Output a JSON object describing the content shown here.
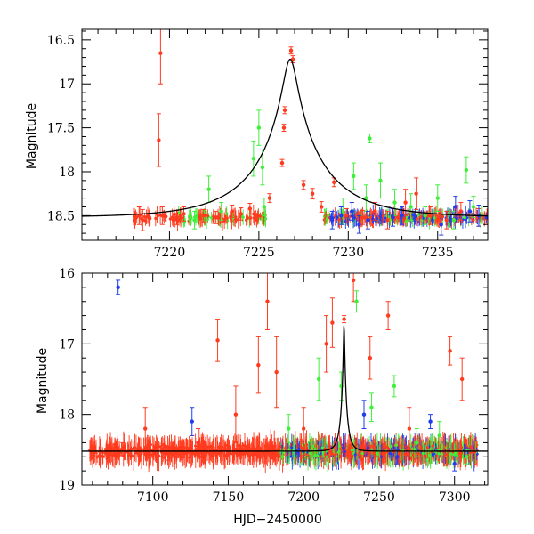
{
  "chart_data": [
    {
      "type": "scatter",
      "panel": "top",
      "title": "",
      "xlabel": "",
      "ylabel": "Magnitude",
      "xlim": [
        7215.1,
        7237.8
      ],
      "ylim": [
        18.78,
        16.38
      ],
      "y_inverted": true,
      "xticks": [
        7220,
        7225,
        7230,
        7235
      ],
      "xtick_labels": [
        "7220",
        "7225",
        "7230",
        "7235"
      ],
      "yticks": [
        16.5,
        17,
        17.5,
        18,
        18.5
      ],
      "ytick_labels": [
        "16.5",
        "17",
        "17.5",
        "18",
        "18.5"
      ],
      "grid": false,
      "series": [
        {
          "name": "red",
          "color": "#ff3a1e",
          "points": [
            {
              "x": 7218.3,
              "y": 18.5,
              "err": 0.1
            },
            {
              "x": 7218.5,
              "y": 18.55,
              "err": 0.12
            },
            {
              "x": 7219.4,
              "y": 17.64,
              "err": 0.3
            },
            {
              "x": 7219.5,
              "y": 16.65,
              "err": 0.35
            },
            {
              "x": 7219.6,
              "y": 18.5,
              "err": 0.1
            },
            {
              "x": 7220.4,
              "y": 18.52,
              "err": 0.08
            },
            {
              "x": 7220.8,
              "y": 18.48,
              "err": 0.08
            },
            {
              "x": 7221.9,
              "y": 18.5,
              "err": 0.07
            },
            {
              "x": 7222.6,
              "y": 18.52,
              "err": 0.07
            },
            {
              "x": 7223.5,
              "y": 18.45,
              "err": 0.07
            },
            {
              "x": 7224.0,
              "y": 18.48,
              "err": 0.07
            },
            {
              "x": 7224.5,
              "y": 18.42,
              "err": 0.06
            },
            {
              "x": 7225.6,
              "y": 18.3,
              "err": 0.05
            },
            {
              "x": 7226.3,
              "y": 17.9,
              "err": 0.04
            },
            {
              "x": 7226.4,
              "y": 17.5,
              "err": 0.04
            },
            {
              "x": 7226.45,
              "y": 17.3,
              "err": 0.04
            },
            {
              "x": 7226.8,
              "y": 16.62,
              "err": 0.04
            },
            {
              "x": 7226.9,
              "y": 16.72,
              "err": 0.04
            },
            {
              "x": 7227.5,
              "y": 18.15,
              "err": 0.05
            },
            {
              "x": 7228.0,
              "y": 18.25,
              "err": 0.06
            },
            {
              "x": 7228.5,
              "y": 18.4,
              "err": 0.06
            },
            {
              "x": 7229.2,
              "y": 18.12,
              "err": 0.05
            },
            {
              "x": 7229.9,
              "y": 18.5,
              "err": 0.08
            },
            {
              "x": 7230.8,
              "y": 18.52,
              "err": 0.08
            },
            {
              "x": 7231.5,
              "y": 18.45,
              "err": 0.1
            },
            {
              "x": 7232.2,
              "y": 18.55,
              "err": 0.1
            },
            {
              "x": 7233.2,
              "y": 18.35,
              "err": 0.15
            },
            {
              "x": 7233.8,
              "y": 18.25,
              "err": 0.18
            },
            {
              "x": 7234.6,
              "y": 18.5,
              "err": 0.1
            },
            {
              "x": 7235.5,
              "y": 18.55,
              "err": 0.1
            },
            {
              "x": 7236.3,
              "y": 18.45,
              "err": 0.1
            },
            {
              "x": 7237.3,
              "y": 18.52,
              "err": 0.1
            }
          ]
        },
        {
          "name": "green",
          "color": "#3ef03a",
          "points": [
            {
              "x": 7221.4,
              "y": 18.55,
              "err": 0.1
            },
            {
              "x": 7222.2,
              "y": 18.2,
              "err": 0.15
            },
            {
              "x": 7222.9,
              "y": 18.45,
              "err": 0.1
            },
            {
              "x": 7224.7,
              "y": 17.85,
              "err": 0.2
            },
            {
              "x": 7225.0,
              "y": 17.5,
              "err": 0.2
            },
            {
              "x": 7225.2,
              "y": 17.95,
              "err": 0.2
            },
            {
              "x": 7225.3,
              "y": 18.4,
              "err": 0.1
            },
            {
              "x": 7229.7,
              "y": 18.45,
              "err": 0.15
            },
            {
              "x": 7230.3,
              "y": 18.05,
              "err": 0.15
            },
            {
              "x": 7231.0,
              "y": 18.3,
              "err": 0.15
            },
            {
              "x": 7231.2,
              "y": 17.62,
              "err": 0.05
            },
            {
              "x": 7231.8,
              "y": 18.1,
              "err": 0.2
            },
            {
              "x": 7232.6,
              "y": 18.35,
              "err": 0.15
            },
            {
              "x": 7233.5,
              "y": 18.4,
              "err": 0.15
            },
            {
              "x": 7234.3,
              "y": 18.5,
              "err": 0.1
            },
            {
              "x": 7235.0,
              "y": 18.3,
              "err": 0.15
            },
            {
              "x": 7235.9,
              "y": 18.55,
              "err": 0.1
            },
            {
              "x": 7236.6,
              "y": 17.98,
              "err": 0.15
            },
            {
              "x": 7237.0,
              "y": 18.4,
              "err": 0.12
            }
          ]
        },
        {
          "name": "blue",
          "color": "#1e3cf0",
          "points": [
            {
              "x": 7229.1,
              "y": 18.55,
              "err": 0.1
            },
            {
              "x": 7229.6,
              "y": 18.5,
              "err": 0.1
            },
            {
              "x": 7230.2,
              "y": 18.45,
              "err": 0.1
            },
            {
              "x": 7230.6,
              "y": 18.6,
              "err": 0.1
            },
            {
              "x": 7231.1,
              "y": 18.55,
              "err": 0.1
            },
            {
              "x": 7232.5,
              "y": 18.52,
              "err": 0.1
            },
            {
              "x": 7233.0,
              "y": 18.5,
              "err": 0.1
            },
            {
              "x": 7235.2,
              "y": 18.6,
              "err": 0.12
            },
            {
              "x": 7236.0,
              "y": 18.4,
              "err": 0.12
            },
            {
              "x": 7236.8,
              "y": 18.45,
              "err": 0.12
            },
            {
              "x": 7237.3,
              "y": 18.5,
              "err": 0.12
            }
          ]
        },
        {
          "name": "model",
          "type": "line",
          "color": "#000000",
          "baseline": 18.52,
          "peak_x": 7226.75,
          "peak_y": 16.72
        }
      ]
    },
    {
      "type": "scatter",
      "panel": "bottom",
      "title": "",
      "xlabel": "HJD−2450000",
      "ylabel": "Magnitude",
      "xlim": [
        7053,
        7322
      ],
      "ylim": [
        19.0,
        16.0
      ],
      "y_inverted": true,
      "xticks": [
        7100,
        7150,
        7200,
        7250,
        7300
      ],
      "xtick_labels": [
        "7100",
        "7150",
        "7200",
        "7250",
        "7300"
      ],
      "yticks": [
        16,
        17,
        18,
        19
      ],
      "ytick_labels": [
        "16",
        "17",
        "18",
        "19"
      ],
      "grid": false,
      "series": [
        {
          "name": "red",
          "color": "#ff3a1e",
          "points": [
            {
              "x": 7060,
              "y": 18.55,
              "err": 0.08
            },
            {
              "x": 7080,
              "y": 18.5,
              "err": 0.1
            },
            {
              "x": 7095,
              "y": 18.2,
              "err": 0.3
            },
            {
              "x": 7110,
              "y": 18.55,
              "err": 0.1
            },
            {
              "x": 7130,
              "y": 18.4,
              "err": 0.2
            },
            {
              "x": 7143,
              "y": 16.95,
              "err": 0.3
            },
            {
              "x": 7155,
              "y": 18.0,
              "err": 0.4
            },
            {
              "x": 7170,
              "y": 17.3,
              "err": 0.4
            },
            {
              "x": 7176,
              "y": 16.4,
              "err": 0.4
            },
            {
              "x": 7182,
              "y": 17.4,
              "err": 0.5
            },
            {
              "x": 7200,
              "y": 18.2,
              "err": 0.3
            },
            {
              "x": 7215,
              "y": 17.0,
              "err": 0.4
            },
            {
              "x": 7219,
              "y": 16.7,
              "err": 0.35
            },
            {
              "x": 7226.8,
              "y": 16.65,
              "err": 0.05
            },
            {
              "x": 7233,
              "y": 16.1,
              "err": 0.3
            },
            {
              "x": 7244,
              "y": 17.2,
              "err": 0.3
            },
            {
              "x": 7256,
              "y": 16.6,
              "err": 0.2
            },
            {
              "x": 7270,
              "y": 18.2,
              "err": 0.3
            },
            {
              "x": 7297,
              "y": 17.1,
              "err": 0.2
            },
            {
              "x": 7305,
              "y": 17.5,
              "err": 0.3
            }
          ]
        },
        {
          "name": "green",
          "color": "#3ef03a",
          "points": [
            {
              "x": 7190,
              "y": 18.2,
              "err": 0.2
            },
            {
              "x": 7210,
              "y": 17.5,
              "err": 0.3
            },
            {
              "x": 7225,
              "y": 17.6,
              "err": 0.2
            },
            {
              "x": 7235,
              "y": 16.4,
              "err": 0.15
            },
            {
              "x": 7245,
              "y": 17.9,
              "err": 0.2
            },
            {
              "x": 7260,
              "y": 17.6,
              "err": 0.15
            },
            {
              "x": 7275,
              "y": 18.4,
              "err": 0.2
            },
            {
              "x": 7290,
              "y": 18.3,
              "err": 0.2
            },
            {
              "x": 7308,
              "y": 18.6,
              "err": 0.1
            }
          ]
        },
        {
          "name": "blue",
          "color": "#1e3cf0",
          "points": [
            {
              "x": 7077,
              "y": 16.2,
              "err": 0.1
            },
            {
              "x": 7126,
              "y": 18.1,
              "err": 0.2
            },
            {
              "x": 7240,
              "y": 18.0,
              "err": 0.2
            },
            {
              "x": 7262,
              "y": 18.6,
              "err": 0.1
            },
            {
              "x": 7284,
              "y": 18.1,
              "err": 0.1
            },
            {
              "x": 7300,
              "y": 18.7,
              "err": 0.1
            }
          ]
        },
        {
          "name": "model",
          "type": "line",
          "color": "#000000",
          "baseline": 18.52,
          "peak_x": 7226.75,
          "peak_y": 16.72
        }
      ]
    }
  ]
}
